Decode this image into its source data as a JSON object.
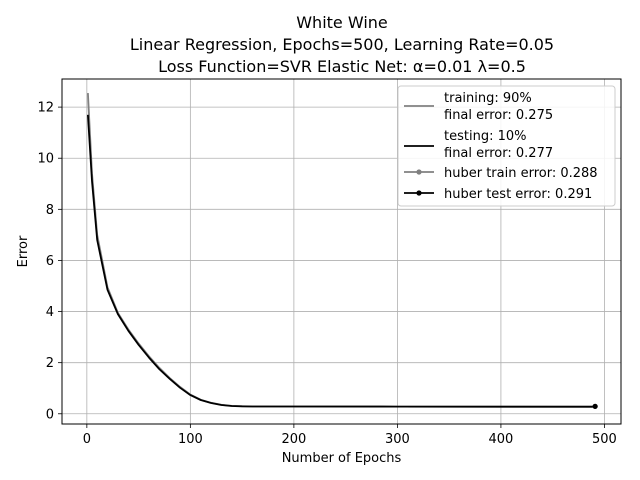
{
  "chart_data": {
    "type": "line",
    "title": [
      "White Wine",
      "Linear Regression, Epochs=500, Learning Rate=0.05",
      "Loss Function=SVR Elastic Net: α=0.01 λ=0.5"
    ],
    "xlabel": "Number of Epochs",
    "ylabel": "Error",
    "xlim": [
      -24,
      516
    ],
    "ylim": [
      -0.4,
      13.1
    ],
    "xticks": [
      0,
      100,
      200,
      300,
      400,
      500
    ],
    "yticks": [
      0,
      2,
      4,
      6,
      8,
      10,
      12
    ],
    "grid": true,
    "legend_position": "top-right",
    "series": [
      {
        "name": "training: 90%\nfinal error: 0.275",
        "color": "#808080",
        "marker": false,
        "x": [
          1,
          5,
          10,
          20,
          30,
          40,
          50,
          60,
          70,
          80,
          90,
          100,
          110,
          120,
          130,
          140,
          150,
          160,
          200,
          300,
          400,
          491
        ],
        "y": [
          12.55,
          9.4,
          7.0,
          4.95,
          3.95,
          3.3,
          2.75,
          2.25,
          1.8,
          1.4,
          1.05,
          0.75,
          0.55,
          0.43,
          0.35,
          0.31,
          0.295,
          0.29,
          0.285,
          0.28,
          0.277,
          0.275
        ]
      },
      {
        "name": "testing: 10%\nfinal error: 0.277",
        "color": "#000000",
        "marker": false,
        "x": [
          1,
          5,
          10,
          20,
          30,
          40,
          50,
          60,
          70,
          80,
          90,
          100,
          110,
          120,
          130,
          140,
          150,
          160,
          200,
          300,
          400,
          491
        ],
        "y": [
          11.7,
          9.1,
          6.8,
          4.85,
          3.9,
          3.25,
          2.7,
          2.2,
          1.75,
          1.37,
          1.02,
          0.73,
          0.54,
          0.42,
          0.345,
          0.305,
          0.29,
          0.285,
          0.283,
          0.28,
          0.278,
          0.277
        ]
      },
      {
        "name": "huber train error: 0.288",
        "color": "#808080",
        "marker": true,
        "x": [
          491
        ],
        "y": [
          0.288
        ]
      },
      {
        "name": "huber test error: 0.291",
        "color": "#000000",
        "marker": true,
        "x": [
          491
        ],
        "y": [
          0.291
        ]
      }
    ]
  }
}
